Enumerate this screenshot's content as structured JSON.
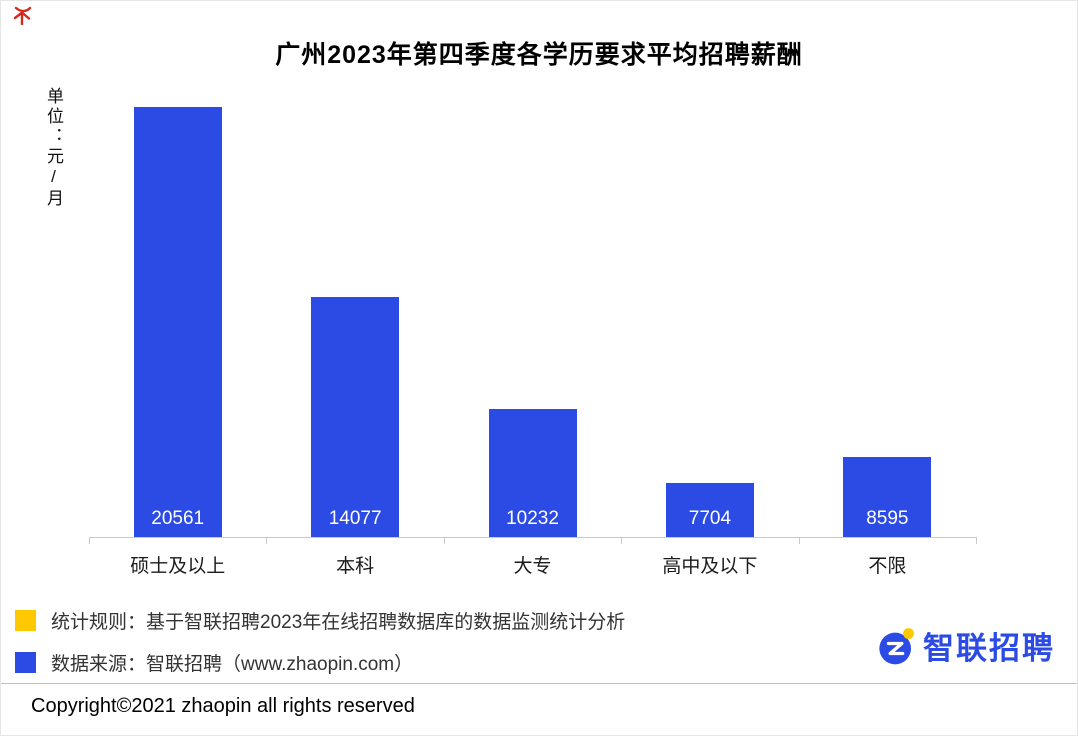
{
  "chart_data": {
    "type": "bar",
    "title": "广州2023年第四季度各学历要求平均招聘薪酬",
    "ylabel": "单位：元/月",
    "categories": [
      "硕士及以上",
      "本科",
      "大专",
      "高中及以下",
      "不限"
    ],
    "values": [
      20561,
      14077,
      10232,
      7704,
      8595
    ],
    "ylim": [
      5850,
      20561
    ],
    "bar_color": "#2B4BE4",
    "value_label_color": "#FFFFFF",
    "value_labels_position": "inside-bottom",
    "grid": false,
    "legend_position": "none"
  },
  "footer": {
    "legend": [
      {
        "color": "#FFC800",
        "text": "统计规则：基于智联招聘2023年在线招聘数据库的数据监测统计分析"
      },
      {
        "color": "#2B4BE4",
        "text": "数据来源：智联招聘（www.zhaopin.com）"
      }
    ],
    "logo_text": "智联招聘",
    "copyright": "Copyright©2021 zhaopin all rights reserved"
  },
  "colors": {
    "bar_blue": "#2B4BE4",
    "accent_yellow": "#FFC800",
    "axis_gray": "#C9C9C9",
    "corner_red": "#D8281E"
  }
}
